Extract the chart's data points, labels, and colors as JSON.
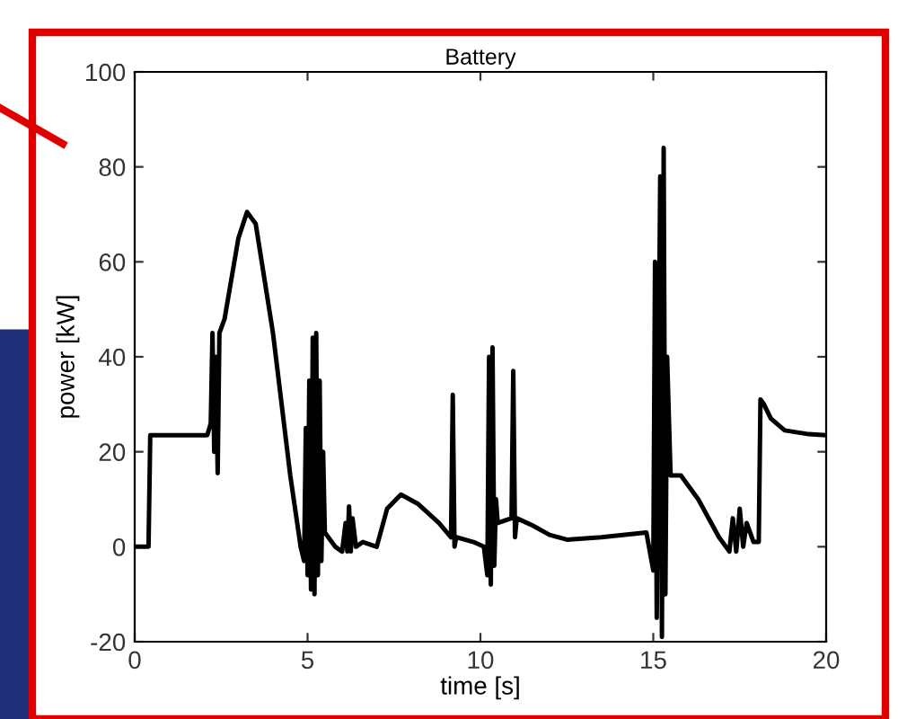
{
  "chart_data": {
    "type": "line",
    "title": "Battery",
    "xlabel": "time [s]",
    "ylabel": "power [kW]",
    "xlim": [
      0,
      20
    ],
    "ylim": [
      -20,
      100
    ],
    "xticks": [
      0,
      5,
      10,
      15,
      20
    ],
    "yticks": [
      -20,
      0,
      20,
      40,
      60,
      80,
      100
    ],
    "grid": false,
    "series": [
      {
        "color": "#000000",
        "x": [
          0,
          0.4,
          0.45,
          2.1,
          2.2,
          2.25,
          2.3,
          2.35,
          2.4,
          2.45,
          2.6,
          3,
          3.25,
          3.5,
          4,
          4.5,
          4.8,
          4.9,
          4.95,
          5.0,
          5.05,
          5.1,
          5.15,
          5.2,
          5.25,
          5.3,
          5.35,
          5.4,
          5.45,
          5.5,
          5.8,
          6.0,
          6.1,
          6.15,
          6.2,
          6.25,
          6.3,
          6.4,
          6.6,
          7,
          7.3,
          7.7,
          8.2,
          8.8,
          9.15,
          9.2,
          9.25,
          9.3,
          9.8,
          10.1,
          10.2,
          10.25,
          10.3,
          10.35,
          10.4,
          10.45,
          10.5,
          10.9,
          10.95,
          11.0,
          11.05,
          11.5,
          12,
          12.5,
          13.5,
          14.8,
          15,
          15.05,
          15.1,
          15.2,
          15.25,
          15.3,
          15.35,
          15.4,
          15.5,
          15.8,
          16.3,
          16.9,
          17.2,
          17.3,
          17.4,
          17.5,
          17.6,
          17.7,
          17.9,
          18.05,
          18.1,
          18.2,
          18.4,
          18.8,
          19.5,
          20
        ],
        "values": [
          0,
          0,
          23.5,
          23.5,
          26,
          45,
          20,
          40,
          15.5,
          45,
          48,
          65,
          70.5,
          68,
          45,
          15,
          0,
          -3,
          25,
          -6,
          35,
          -9,
          44,
          -10,
          45,
          -6,
          35,
          -3,
          20,
          3,
          0,
          -1,
          5,
          -1,
          8.5,
          -1,
          6,
          0,
          1,
          0,
          8,
          11,
          9,
          5,
          2,
          32,
          0,
          2,
          1,
          0,
          -6,
          40,
          -8,
          42,
          -4,
          10,
          5,
          6,
          37,
          2,
          6,
          4.5,
          2.5,
          1.5,
          2,
          3,
          -5,
          60,
          -15,
          78,
          -19,
          84,
          -10,
          40,
          15,
          15,
          10,
          2,
          -1,
          6,
          -1,
          8,
          0,
          5,
          1,
          1,
          31,
          30,
          27,
          24.5,
          23.7,
          23.5
        ]
      }
    ]
  }
}
